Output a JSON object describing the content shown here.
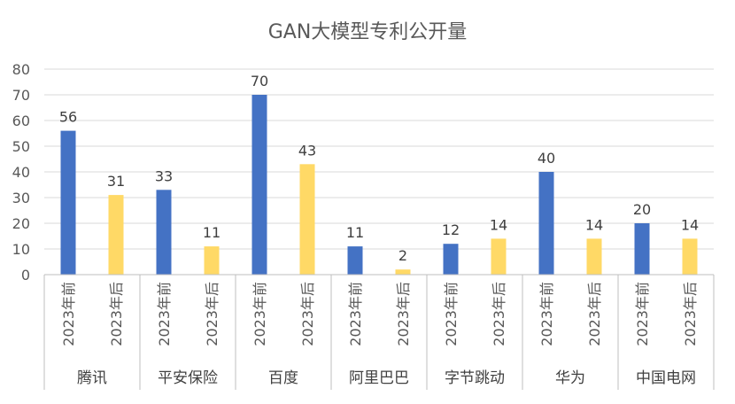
{
  "chart_data": {
    "type": "bar",
    "title": "GAN大模型专利公开量",
    "groups": [
      "腾讯",
      "平安保险",
      "百度",
      "阿里巴巴",
      "字节跳动",
      "华为",
      "中国电网"
    ],
    "sub_categories": [
      "2023年前",
      "2023年后"
    ],
    "series": [
      {
        "values": [
          56,
          33,
          70,
          11,
          12,
          40,
          20
        ],
        "color": "#4472C4"
      },
      {
        "values": [
          31,
          11,
          43,
          2,
          14,
          14,
          14
        ],
        "color": "#FFD966"
      }
    ],
    "ylim": [
      0,
      80
    ],
    "yticks": [
      0,
      10,
      20,
      30,
      40,
      50,
      60,
      70,
      80
    ],
    "grid": true,
    "legend": "none",
    "data_labels": true
  }
}
